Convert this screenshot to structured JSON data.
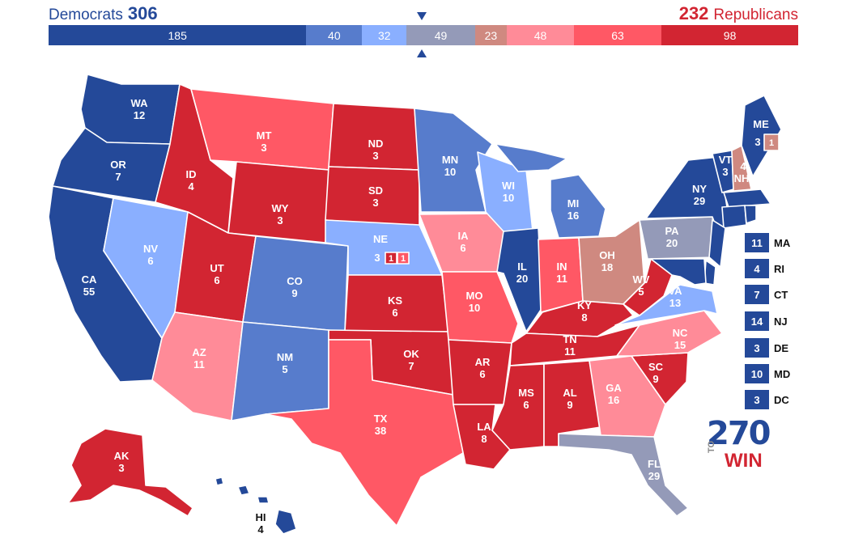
{
  "header": {
    "dem_name": "Democrats",
    "dem_total": "306",
    "rep_name": "Republicans",
    "rep_total": "232"
  },
  "bar": [
    {
      "value": "185",
      "weight": 185,
      "color": "#244999"
    },
    {
      "value": "40",
      "weight": 40,
      "color": "#577ccc"
    },
    {
      "value": "32",
      "weight": 32,
      "color": "#8aafff"
    },
    {
      "value": "49",
      "weight": 49,
      "color": "#949ab8"
    },
    {
      "value": "23",
      "weight": 23,
      "color": "#cf8980"
    },
    {
      "value": "48",
      "weight": 48,
      "color": "#ff8b98"
    },
    {
      "value": "63",
      "weight": 63,
      "color": "#ff5865"
    },
    {
      "value": "98",
      "weight": 98,
      "color": "#d22532"
    }
  ],
  "colors": {
    "safe_d": "#244999",
    "likely_d": "#577ccc",
    "lean_d": "#8aafff",
    "tossup": "#949ab8",
    "tilt_r": "#cf8980",
    "lean_r": "#ff8b98",
    "likely_r": "#ff5865",
    "safe_r": "#d22532"
  },
  "states": {
    "WA": {
      "abbr": "WA",
      "ev": "12"
    },
    "OR": {
      "abbr": "OR",
      "ev": "7"
    },
    "CA": {
      "abbr": "CA",
      "ev": "55"
    },
    "NV": {
      "abbr": "NV",
      "ev": "6"
    },
    "ID": {
      "abbr": "ID",
      "ev": "4"
    },
    "MT": {
      "abbr": "MT",
      "ev": "3"
    },
    "WY": {
      "abbr": "WY",
      "ev": "3"
    },
    "UT": {
      "abbr": "UT",
      "ev": "6"
    },
    "AZ": {
      "abbr": "AZ",
      "ev": "11"
    },
    "CO": {
      "abbr": "CO",
      "ev": "9"
    },
    "NM": {
      "abbr": "NM",
      "ev": "5"
    },
    "ND": {
      "abbr": "ND",
      "ev": "3"
    },
    "SD": {
      "abbr": "SD",
      "ev": "3"
    },
    "NE": {
      "abbr": "NE",
      "ev": "3"
    },
    "NE1": {
      "ev": "1"
    },
    "NE2": {
      "ev": "1"
    },
    "KS": {
      "abbr": "KS",
      "ev": "6"
    },
    "OK": {
      "abbr": "OK",
      "ev": "7"
    },
    "TX": {
      "abbr": "TX",
      "ev": "38"
    },
    "MN": {
      "abbr": "MN",
      "ev": "10"
    },
    "IA": {
      "abbr": "IA",
      "ev": "6"
    },
    "MO": {
      "abbr": "MO",
      "ev": "10"
    },
    "AR": {
      "abbr": "AR",
      "ev": "6"
    },
    "LA": {
      "abbr": "LA",
      "ev": "8"
    },
    "WI": {
      "abbr": "WI",
      "ev": "10"
    },
    "IL": {
      "abbr": "IL",
      "ev": "20"
    },
    "MI": {
      "abbr": "MI",
      "ev": "16"
    },
    "IN": {
      "abbr": "IN",
      "ev": "11"
    },
    "OH": {
      "abbr": "OH",
      "ev": "18"
    },
    "KY": {
      "abbr": "KY",
      "ev": "8"
    },
    "TN": {
      "abbr": "TN",
      "ev": "11"
    },
    "MS": {
      "abbr": "MS",
      "ev": "6"
    },
    "AL": {
      "abbr": "AL",
      "ev": "9"
    },
    "GA": {
      "abbr": "GA",
      "ev": "16"
    },
    "FL": {
      "abbr": "FL",
      "ev": "29"
    },
    "SC": {
      "abbr": "SC",
      "ev": "9"
    },
    "NC": {
      "abbr": "NC",
      "ev": "15"
    },
    "VA": {
      "abbr": "VA",
      "ev": "13"
    },
    "WV": {
      "abbr": "WV",
      "ev": "5"
    },
    "PA": {
      "abbr": "PA",
      "ev": "20"
    },
    "NY": {
      "abbr": "NY",
      "ev": "29"
    },
    "VT": {
      "abbr": "VT",
      "ev": "3"
    },
    "NH": {
      "abbr": "NH",
      "ev": "4"
    },
    "ME": {
      "abbr": "ME",
      "ev": "3"
    },
    "ME2": {
      "ev": "1"
    },
    "AK": {
      "abbr": "AK",
      "ev": "3"
    },
    "HI": {
      "abbr": "HI",
      "ev": "4"
    }
  },
  "small_states": [
    {
      "ev": "11",
      "abbr": "MA"
    },
    {
      "ev": "4",
      "abbr": "RI"
    },
    {
      "ev": "7",
      "abbr": "CT"
    },
    {
      "ev": "14",
      "abbr": "NJ"
    },
    {
      "ev": "3",
      "abbr": "DE"
    },
    {
      "ev": "10",
      "abbr": "MD"
    },
    {
      "ev": "3",
      "abbr": "DC"
    }
  ],
  "logo": {
    "number": "270",
    "to": "TO",
    "win": "WIN"
  }
}
